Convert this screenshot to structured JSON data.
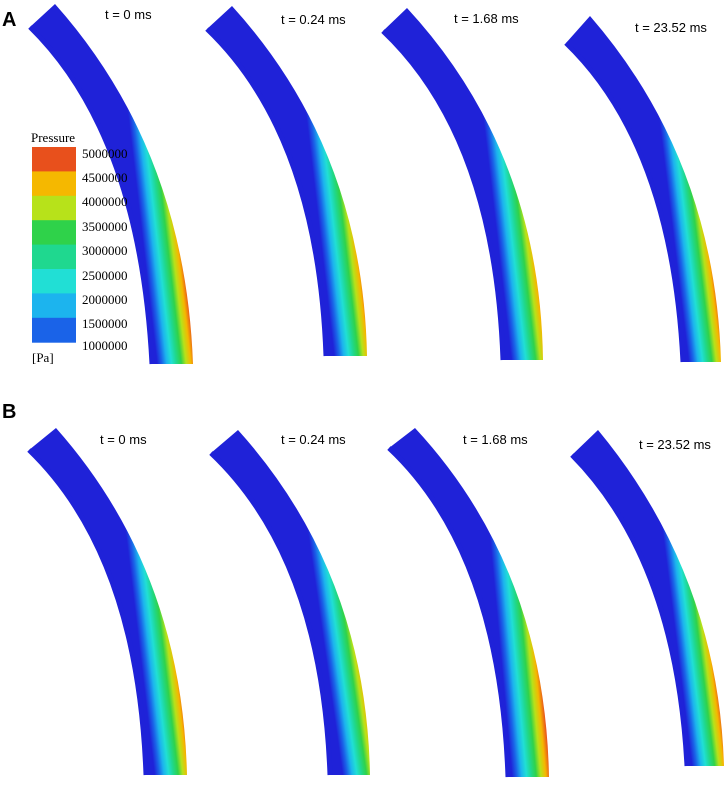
{
  "panels": [
    {
      "letter": "A",
      "times": [
        "t = 0 ms",
        "t = 0.24 ms",
        "t = 1.68 ms",
        "t = 23.52 ms"
      ]
    },
    {
      "letter": "B",
      "times": [
        "t = 0 ms",
        "t = 0.24 ms",
        "t = 1.68 ms",
        "t = 23.52 ms"
      ]
    }
  ],
  "legend": {
    "title": "Pressure",
    "unit": "[Pa]",
    "levels": [
      "5000000",
      "4500000",
      "4000000",
      "3500000",
      "3000000",
      "2500000",
      "2000000",
      "1500000",
      "1000000"
    ],
    "colors": [
      "#e8501c",
      "#f5b800",
      "#b7e21a",
      "#2fd24a",
      "#1fd88f",
      "#21dfd5",
      "#1cb4ee",
      "#1a63e8"
    ]
  },
  "contour_colors": [
    "#1f22d8",
    "#1a63e8",
    "#1cb4ee",
    "#21dfd5",
    "#1fd88f",
    "#2fd24a",
    "#b7e21a",
    "#f5b800",
    "#e8501c",
    "#ff1a00"
  ]
}
